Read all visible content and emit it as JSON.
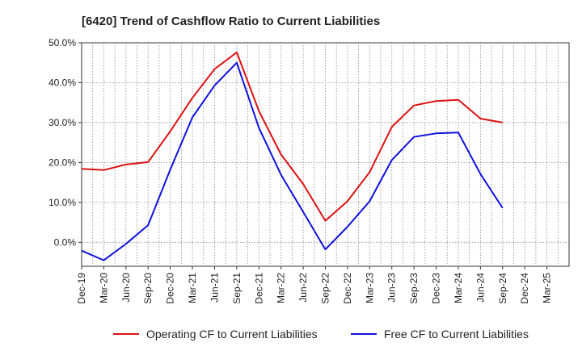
{
  "chart_data": {
    "type": "line",
    "title": "[6420]  Trend of Cashflow Ratio to Current Liabilities",
    "xlabel": "",
    "ylabel": "",
    "categories": [
      "Dec-19",
      "Mar-20",
      "Jun-20",
      "Sep-20",
      "Dec-20",
      "Mar-21",
      "Jun-21",
      "Sep-21",
      "Dec-21",
      "Mar-22",
      "Jun-22",
      "Sep-22",
      "Dec-22",
      "Mar-23",
      "Jun-23",
      "Sep-23",
      "Dec-23",
      "Mar-24",
      "Jun-24",
      "Sep-24",
      "Dec-24",
      "Mar-25"
    ],
    "series": [
      {
        "name": "Operating CF to Current Liabilities",
        "color": "#dd1111",
        "values": [
          18.4,
          18.1,
          19.5,
          20.1,
          27.8,
          36.2,
          43.4,
          47.6,
          32.9,
          22.0,
          14.6,
          5.4,
          10.3,
          17.6,
          28.9,
          34.3,
          35.4,
          35.7,
          31.0,
          30.0,
          null,
          null
        ]
      },
      {
        "name": "Free CF to Current Liabilities",
        "color": "#1111dd",
        "values": [
          -2.1,
          -4.5,
          -0.4,
          4.3,
          18.2,
          31.3,
          39.3,
          45.0,
          28.7,
          16.9,
          7.6,
          -1.8,
          3.9,
          10.3,
          20.6,
          26.4,
          27.3,
          27.5,
          17.1,
          8.6,
          null,
          null
        ]
      }
    ],
    "ylim": [
      -6,
      50
    ],
    "yticks": [
      0,
      10,
      20,
      30,
      40,
      50
    ],
    "ytick_labels": [
      "0.0%",
      "10.0%",
      "20.0%",
      "30.0%",
      "40.0%",
      "50.0%"
    ],
    "grid": true,
    "legend_position": "bottom"
  }
}
